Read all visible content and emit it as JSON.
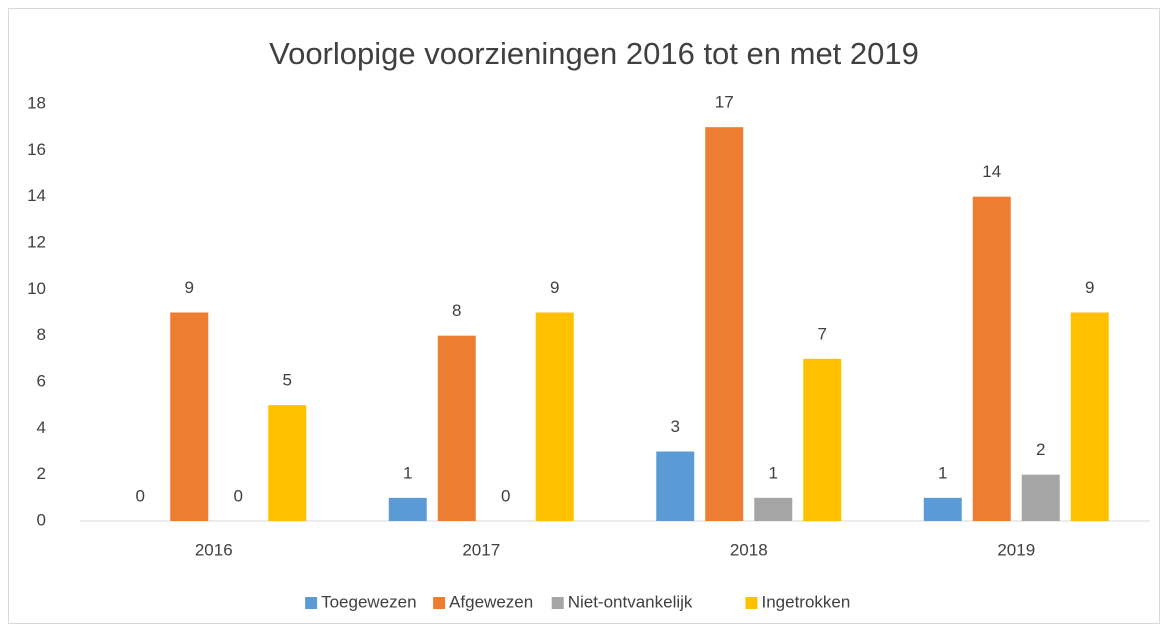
{
  "chart_data": {
    "type": "bar",
    "title": "Voorlopige voorzieningen 2016 tot en met 2019",
    "categories": [
      "2016",
      "2017",
      "2018",
      "2019"
    ],
    "series": [
      {
        "name": "Toegewezen",
        "color": "#5b9bd5",
        "values": [
          0,
          1,
          3,
          1
        ]
      },
      {
        "name": "Afgewezen",
        "color": "#ed7d31",
        "values": [
          9,
          8,
          17,
          14
        ]
      },
      {
        "name": "Niet-ontvankelijk",
        "color": "#a5a5a5",
        "values": [
          0,
          0,
          1,
          2
        ]
      },
      {
        "name": "Ingetrokken",
        "color": "#ffc000",
        "values": [
          5,
          9,
          7,
          9
        ]
      }
    ],
    "ylim": [
      0,
      18
    ],
    "yticks": [
      0,
      2,
      4,
      6,
      8,
      10,
      12,
      14,
      16,
      18
    ],
    "grid": false,
    "legend": "bottom"
  }
}
